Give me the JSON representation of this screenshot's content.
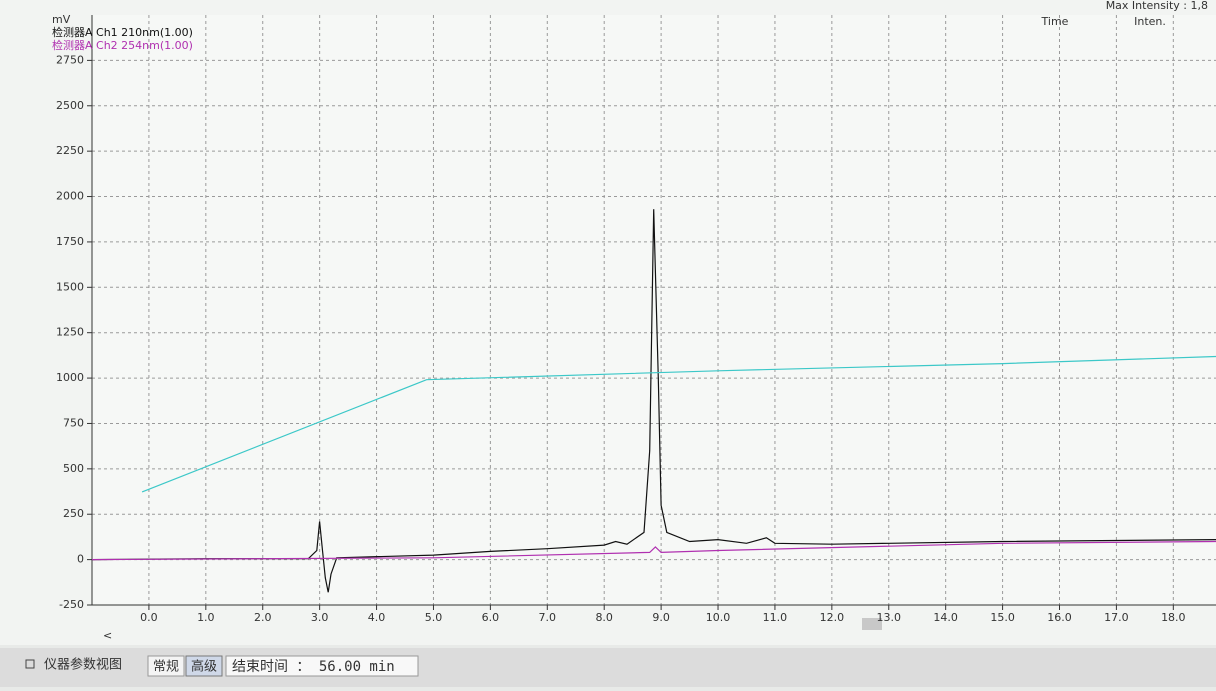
{
  "header": {
    "max_intensity": "Max Intensity : 1,8",
    "time_col": "Time",
    "inten_col": "Inten."
  },
  "chart_data": {
    "type": "line",
    "y_label": "mV",
    "series": [
      {
        "name": "检测器A Ch1 210nm(1.00)",
        "color": "#111111",
        "x": [
          -1,
          1,
          2.8,
          2.95,
          3.0,
          3.05,
          3.1,
          3.15,
          3.2,
          3.3,
          5,
          6,
          7,
          8,
          8.2,
          8.4,
          8.7,
          8.8,
          8.87,
          8.95,
          9.0,
          9.1,
          9.5,
          10,
          10.5,
          10.85,
          11,
          12,
          15,
          18.75
        ],
        "values": [
          0,
          5,
          5,
          50,
          210,
          50,
          -100,
          -180,
          -80,
          10,
          25,
          45,
          60,
          80,
          100,
          85,
          150,
          600,
          1930,
          1000,
          300,
          150,
          100,
          110,
          90,
          120,
          90,
          85,
          100,
          110
        ]
      },
      {
        "name": "检测器A Ch2 254nm(1.00)",
        "color": "#b030b0",
        "x": [
          -1,
          5,
          8.8,
          8.9,
          9.0,
          10,
          15,
          18.75
        ],
        "values": [
          0,
          10,
          40,
          70,
          40,
          50,
          90,
          100
        ]
      },
      {
        "color": "#3cc8c8",
        "x": [
          -0.12,
          4.88,
          10,
          15,
          18.75
        ],
        "values": [
          373,
          991,
          1040,
          1080,
          1119
        ]
      }
    ],
    "xlim": [
      -1,
      18.75
    ],
    "ylim": [
      -250,
      3000
    ],
    "xticks": [
      {
        "value": 0,
        "label": "0.0"
      },
      {
        "value": 1,
        "label": "1.0"
      },
      {
        "value": 2,
        "label": "2.0"
      },
      {
        "value": 3,
        "label": "3.0"
      },
      {
        "value": 4,
        "label": "4.0"
      },
      {
        "value": 5,
        "label": "5.0"
      },
      {
        "value": 6,
        "label": "6.0"
      },
      {
        "value": 7,
        "label": "7.0"
      },
      {
        "value": 8,
        "label": "8.0"
      },
      {
        "value": 9,
        "label": "9.0"
      },
      {
        "value": 10,
        "label": "10.0"
      },
      {
        "value": 11,
        "label": "11.0"
      },
      {
        "value": 12,
        "label": "12.0"
      },
      {
        "value": 13,
        "label": "13.0"
      },
      {
        "value": 14,
        "label": "14.0"
      },
      {
        "value": 15,
        "label": "15.0"
      },
      {
        "value": 16,
        "label": "16.0"
      },
      {
        "value": 17,
        "label": "17.0"
      },
      {
        "value": 18,
        "label": "18.0"
      }
    ],
    "yticks": [
      -250,
      0,
      250,
      500,
      750,
      1000,
      1250,
      1500,
      1750,
      2000,
      2250,
      2500,
      2750
    ],
    "grid": true
  },
  "scroll_left": "<",
  "footer": {
    "tab": "仪器参数视图",
    "buttons": [
      "常规",
      "高级"
    ],
    "end_time": "结束时间 ： 56.00 min"
  }
}
